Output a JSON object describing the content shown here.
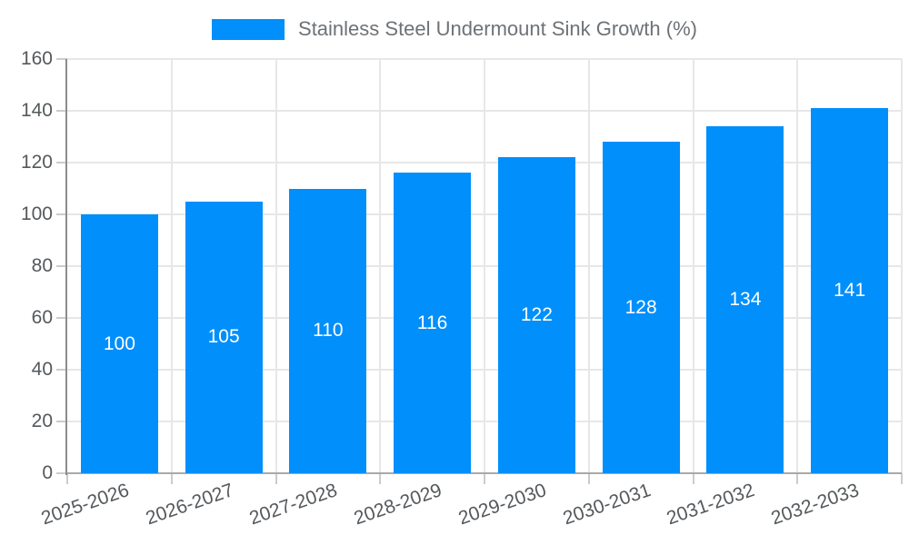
{
  "legend": {
    "label": "Stainless Steel Undermount Sink Growth (%)"
  },
  "chart_data": {
    "type": "bar",
    "title": "Stainless Steel Undermount Sink Growth (%)",
    "xlabel": "",
    "ylabel": "",
    "categories": [
      "2025-2026",
      "2026-2027",
      "2027-2028",
      "2028-2029",
      "2029-2030",
      "2030-2031",
      "2031-2032",
      "2032-2033"
    ],
    "values": [
      100,
      105,
      110,
      116,
      122,
      128,
      134,
      141
    ],
    "value_labels": [
      "100",
      "105",
      "110",
      "116",
      "122",
      "128",
      "134",
      "141"
    ],
    "ytick_labels": [
      "0",
      "20",
      "40",
      "60",
      "80",
      "100",
      "120",
      "140",
      "160"
    ],
    "yticks": [
      0,
      20,
      40,
      60,
      80,
      100,
      120,
      140,
      160
    ],
    "ylim": [
      0,
      160
    ],
    "grid": true,
    "legend_position": "top-center",
    "xlabel_rotation_deg": -19,
    "colors": {
      "bar": "#008FFB",
      "grid": "#e7e7e7",
      "y_axis_line": "#8c8c8c",
      "x_axis_line": "#a9a9a9",
      "tick": "#cccccc",
      "axis_label_text": "#55595c",
      "title_text": "#6e7276",
      "value_label_text": "#ffffff",
      "background": "#ffffff"
    }
  }
}
